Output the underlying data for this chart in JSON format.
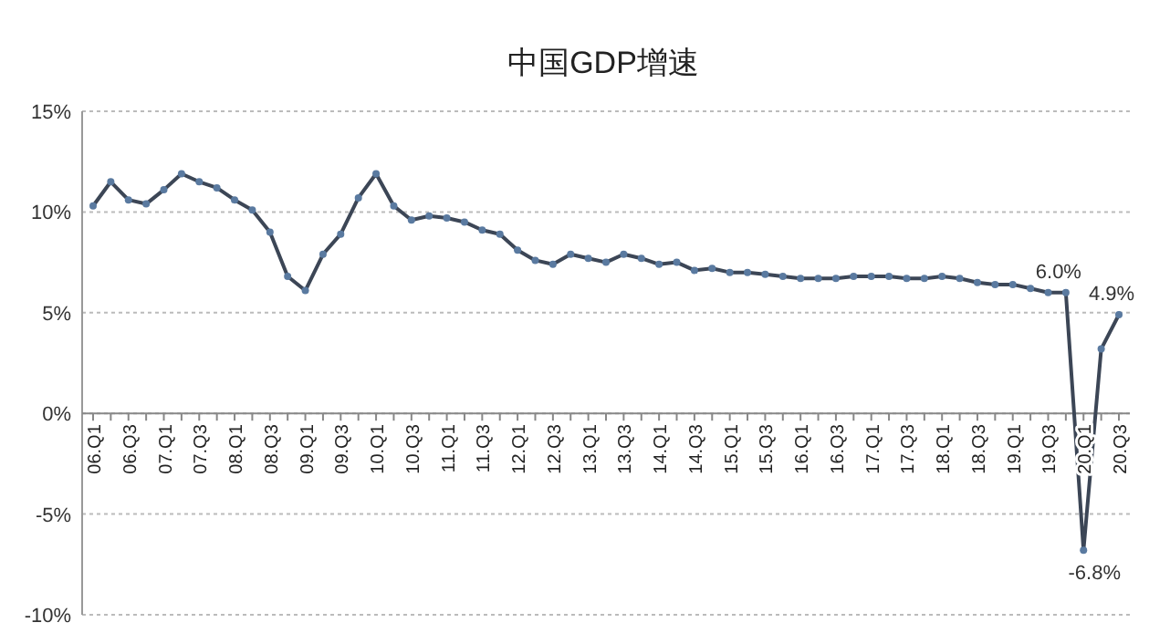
{
  "chart_data": {
    "type": "line",
    "title": "中国GDP增速",
    "categories": [
      "06.Q1",
      null,
      "06.Q3",
      null,
      "07.Q1",
      null,
      "07.Q3",
      null,
      "08.Q1",
      null,
      "08.Q3",
      null,
      "09.Q1",
      null,
      "09.Q3",
      null,
      "10.Q1",
      null,
      "10.Q3",
      null,
      "11.Q1",
      null,
      "11.Q3",
      null,
      "12.Q1",
      null,
      "12.Q3",
      null,
      "13.Q1",
      null,
      "13.Q3",
      null,
      "14.Q1",
      null,
      "14.Q3",
      null,
      "15.Q1",
      null,
      "15.Q3",
      null,
      "16.Q1",
      null,
      "16.Q3",
      null,
      "17.Q1",
      null,
      "17.Q3",
      null,
      "18.Q1",
      null,
      "18.Q3",
      null,
      "19.Q1",
      null,
      "19.Q3",
      null,
      "20.Q1",
      null,
      "20.Q3"
    ],
    "series": [
      {
        "color": "#3c4656",
        "values": [
          10.3,
          11.5,
          10.6,
          10.4,
          11.1,
          11.9,
          11.5,
          11.2,
          10.6,
          10.1,
          9.0,
          6.8,
          6.1,
          7.9,
          8.9,
          10.7,
          11.9,
          10.3,
          9.6,
          9.8,
          9.7,
          9.5,
          9.1,
          8.9,
          8.1,
          7.6,
          7.4,
          7.9,
          7.7,
          7.5,
          7.9,
          7.7,
          7.4,
          7.5,
          7.1,
          7.2,
          7.0,
          7.0,
          6.9,
          6.8,
          6.7,
          6.7,
          6.7,
          6.8,
          6.8,
          6.8,
          6.7,
          6.7,
          6.8,
          6.7,
          6.5,
          6.4,
          6.4,
          6.2,
          6.0,
          6.0,
          -6.8,
          3.2,
          4.9
        ],
        "value_labels": [
          null,
          null,
          null,
          null,
          null,
          null,
          null,
          null,
          null,
          null,
          null,
          null,
          null,
          null,
          null,
          null,
          null,
          null,
          null,
          null,
          null,
          null,
          null,
          null,
          null,
          null,
          null,
          null,
          null,
          null,
          null,
          null,
          null,
          null,
          null,
          null,
          null,
          null,
          null,
          null,
          null,
          null,
          null,
          null,
          null,
          null,
          null,
          null,
          null,
          null,
          null,
          null,
          null,
          null,
          null,
          "6.0%",
          "-6.8%",
          null,
          "4.9%"
        ]
      }
    ],
    "ylim": [
      -10,
      15
    ],
    "yticks": [
      {
        "value": -10,
        "label": "-10%"
      },
      {
        "value": -5,
        "label": "-5%"
      },
      {
        "value": 0,
        "label": "0%"
      },
      {
        "value": 5,
        "label": "5%"
      },
      {
        "value": 10,
        "label": "10%"
      },
      {
        "value": 15,
        "label": "15%"
      }
    ],
    "grid": "y",
    "marker": "circle"
  }
}
